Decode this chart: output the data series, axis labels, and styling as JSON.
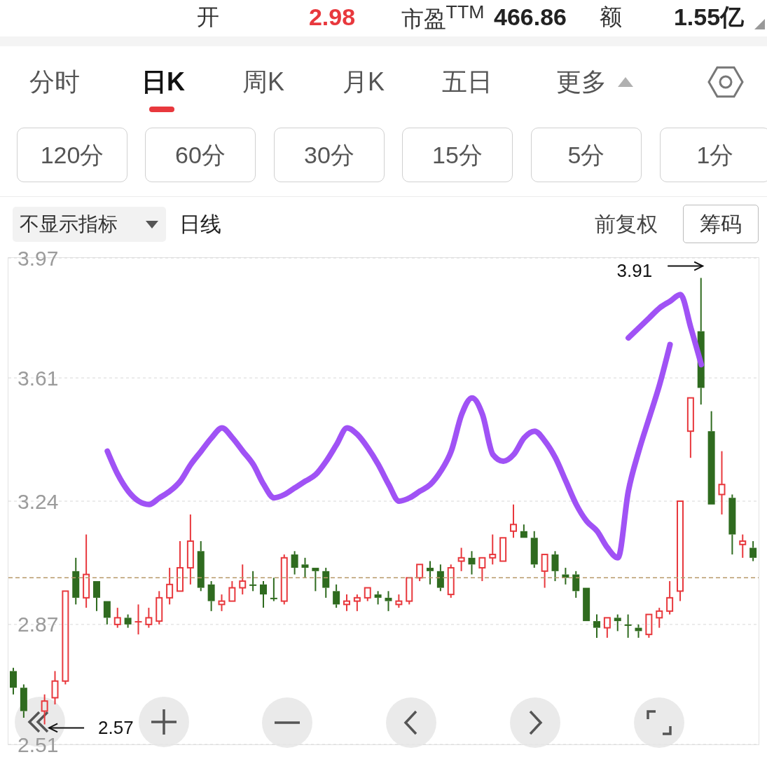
{
  "chart_data": {
    "type": "candlestick",
    "categories": [
      null,
      null,
      null,
      null,
      null,
      null,
      null,
      null,
      null,
      null,
      null,
      null,
      null,
      null,
      null,
      null,
      null,
      null,
      null,
      null,
      null,
      null,
      null,
      null,
      null,
      null,
      null,
      null,
      null,
      null,
      null,
      null,
      null,
      null,
      null,
      null,
      null,
      null,
      null,
      null,
      null,
      null,
      null,
      null,
      null,
      null,
      null,
      null,
      null,
      null,
      null,
      null,
      null,
      null,
      null,
      null,
      null,
      null,
      null,
      null,
      null,
      null,
      null,
      null,
      null,
      null,
      null,
      null,
      null,
      null,
      null,
      null
    ],
    "ohlc": [
      [
        2.73,
        2.74,
        2.66,
        2.68
      ],
      [
        2.68,
        2.69,
        2.59,
        2.61
      ],
      null,
      [
        2.61,
        2.66,
        2.57,
        2.64
      ],
      [
        2.65,
        2.73,
        2.63,
        2.7
      ],
      [
        2.7,
        2.97,
        2.69,
        2.97
      ],
      [
        3.03,
        3.07,
        2.93,
        2.95
      ],
      [
        2.95,
        3.14,
        2.92,
        3.02
      ],
      [
        3.0,
        3.0,
        2.91,
        2.95
      ],
      [
        2.94,
        2.94,
        2.87,
        2.89
      ],
      [
        2.87,
        2.92,
        2.86,
        2.89
      ],
      [
        2.89,
        2.9,
        2.86,
        2.87
      ],
      [
        2.88,
        2.93,
        2.84,
        2.88
      ],
      [
        2.87,
        2.92,
        2.86,
        2.89
      ],
      [
        2.88,
        2.97,
        2.87,
        2.95
      ],
      [
        2.95,
        3.04,
        2.93,
        2.99
      ],
      [
        2.97,
        3.12,
        2.97,
        3.04
      ],
      [
        3.04,
        3.2,
        2.99,
        3.12
      ],
      [
        3.09,
        3.12,
        2.97,
        2.98
      ],
      [
        2.99,
        3.0,
        2.91,
        2.94
      ],
      [
        2.93,
        2.96,
        2.91,
        2.94
      ],
      [
        2.94,
        3.0,
        2.94,
        2.98
      ],
      [
        2.98,
        3.05,
        2.96,
        3.0
      ],
      [
        2.99,
        3.03,
        2.97,
        2.99
      ],
      [
        2.99,
        3.0,
        2.92,
        2.96
      ],
      [
        2.95,
        3.01,
        2.94,
        2.95
      ],
      [
        2.94,
        3.08,
        2.93,
        3.07
      ],
      [
        3.08,
        3.09,
        3.02,
        3.04
      ],
      [
        3.05,
        3.07,
        3.01,
        3.04
      ],
      [
        3.04,
        3.04,
        2.97,
        3.03
      ],
      [
        3.03,
        3.04,
        2.95,
        2.98
      ],
      [
        2.97,
        2.99,
        2.92,
        2.93
      ],
      [
        2.93,
        2.96,
        2.91,
        2.94
      ],
      [
        2.94,
        2.96,
        2.91,
        2.95
      ],
      [
        2.95,
        2.98,
        2.94,
        2.98
      ],
      [
        2.96,
        2.97,
        2.93,
        2.95
      ],
      [
        2.95,
        2.97,
        2.91,
        2.94
      ],
      [
        2.93,
        2.96,
        2.92,
        2.94
      ],
      [
        2.94,
        3.01,
        2.93,
        3.01
      ],
      [
        3.01,
        3.05,
        3.0,
        3.05
      ],
      [
        3.04,
        3.06,
        2.99,
        3.03
      ],
      [
        3.03,
        3.05,
        2.97,
        2.98
      ],
      [
        2.96,
        3.05,
        2.95,
        3.04
      ],
      [
        3.06,
        3.1,
        3.03,
        3.07
      ],
      [
        3.07,
        3.09,
        3.02,
        3.05
      ],
      [
        3.04,
        3.07,
        3.0,
        3.07
      ],
      [
        3.07,
        3.14,
        3.05,
        3.08
      ],
      [
        3.06,
        3.13,
        3.06,
        3.13
      ],
      [
        3.15,
        3.23,
        3.13,
        3.17
      ],
      [
        3.15,
        3.17,
        3.13,
        3.13
      ],
      [
        3.13,
        3.15,
        3.04,
        3.05
      ],
      [
        3.03,
        3.08,
        2.98,
        3.08
      ],
      [
        3.08,
        3.09,
        3.0,
        3.03
      ],
      [
        3.02,
        3.04,
        2.99,
        3.01
      ],
      [
        3.02,
        3.03,
        2.95,
        2.97
      ],
      [
        2.98,
        2.98,
        2.88,
        2.88
      ],
      [
        2.88,
        2.9,
        2.83,
        2.86
      ],
      [
        2.86,
        2.89,
        2.83,
        2.89
      ],
      [
        2.89,
        2.9,
        2.85,
        2.88
      ],
      [
        2.87,
        2.9,
        2.83,
        2.87
      ],
      [
        2.86,
        2.87,
        2.83,
        2.85
      ],
      [
        2.84,
        2.9,
        2.83,
        2.9
      ],
      [
        2.89,
        2.92,
        2.86,
        2.91
      ],
      [
        2.91,
        3.0,
        2.9,
        2.95
      ],
      [
        2.97,
        3.24,
        2.94,
        3.24
      ],
      [
        3.45,
        3.55,
        3.37,
        3.55
      ],
      [
        3.75,
        3.91,
        3.53,
        3.58
      ],
      [
        3.45,
        3.51,
        3.23,
        3.23
      ],
      [
        3.26,
        3.39,
        3.2,
        3.29
      ],
      [
        3.25,
        3.26,
        3.08,
        3.14
      ],
      [
        3.11,
        3.14,
        3.07,
        3.12
      ],
      [
        3.1,
        3.12,
        3.06,
        3.07
      ]
    ],
    "colors": [
      "#2f6b1f",
      "#2f6b1f",
      null,
      "#e8383d",
      "#e8383d",
      "#e8383d",
      "#2f6b1f",
      "#e8383d",
      "#2f6b1f",
      "#2f6b1f",
      "#e8383d",
      "#2f6b1f",
      "#e8383d",
      "#e8383d",
      "#e8383d",
      "#e8383d",
      "#e8383d",
      "#e8383d",
      "#2f6b1f",
      "#2f6b1f",
      "#e8383d",
      "#e8383d",
      "#e8383d",
      "#2f6b1f",
      "#2f6b1f",
      "#2f6b1f",
      "#e8383d",
      "#2f6b1f",
      "#2f6b1f",
      "#2f6b1f",
      "#2f6b1f",
      "#2f6b1f",
      "#e8383d",
      "#e8383d",
      "#e8383d",
      "#2f6b1f",
      "#2f6b1f",
      "#e8383d",
      "#e8383d",
      "#e8383d",
      "#2f6b1f",
      "#2f6b1f",
      "#e8383d",
      "#e8383d",
      "#2f6b1f",
      "#e8383d",
      "#e8383d",
      "#e8383d",
      "#e8383d",
      "#2f6b1f",
      "#2f6b1f",
      "#e8383d",
      "#2f6b1f",
      "#2f6b1f",
      "#2f6b1f",
      "#2f6b1f",
      "#2f6b1f",
      "#e8383d",
      "#2f6b1f",
      "#2f6b1f",
      "#2f6b1f",
      "#e8383d",
      "#e8383d",
      "#e8383d",
      "#e8383d",
      "#e8383d",
      "#2f6b1f",
      "#2f6b1f",
      "#e8383d",
      "#2f6b1f",
      "#e8383d",
      "#2f6b1f"
    ],
    "series": [
      {
        "type": "line",
        "color": "#a052f5",
        "values": [
          null,
          null,
          null,
          null,
          null,
          null,
          null,
          null,
          null,
          3.39,
          3.32,
          3.27,
          3.24,
          3.23,
          3.25,
          3.27,
          3.3,
          3.35,
          3.39,
          3.43,
          3.46,
          3.43,
          3.39,
          3.35,
          3.29,
          3.25,
          3.26,
          3.28,
          3.3,
          3.32,
          3.36,
          3.41,
          3.46,
          3.44,
          3.4,
          3.35,
          3.29,
          3.24,
          3.25,
          3.27,
          3.29,
          3.33,
          3.39,
          3.5,
          3.55,
          3.5,
          3.38,
          3.36,
          3.38,
          3.43,
          3.45,
          3.42,
          3.37,
          3.3,
          3.23,
          3.18,
          3.15,
          3.1,
          3.07,
          3.27,
          3.39,
          3.49,
          3.59,
          3.71,
          null,
          null,
          null,
          null,
          null,
          null,
          null,
          null
        ]
      },
      {
        "type": "line",
        "color": "#a052f5",
        "values": [
          null,
          null,
          null,
          null,
          null,
          null,
          null,
          null,
          null,
          null,
          null,
          null,
          null,
          null,
          null,
          null,
          null,
          null,
          null,
          null,
          null,
          null,
          null,
          null,
          null,
          null,
          null,
          null,
          null,
          null,
          null,
          null,
          null,
          null,
          null,
          null,
          null,
          null,
          null,
          null,
          null,
          null,
          null,
          null,
          null,
          null,
          null,
          null,
          null,
          null,
          null,
          null,
          null,
          null,
          null,
          null,
          null,
          null,
          null,
          3.73,
          3.76,
          3.79,
          3.82,
          3.84,
          3.86,
          3.76,
          3.65,
          null,
          null,
          null,
          null,
          null
        ]
      }
    ],
    "ylim": [
      2.51,
      3.97
    ],
    "yticks": [
      2.51,
      2.87,
      3.24,
      3.61,
      3.97
    ],
    "grid": "y",
    "tick_labels": "y",
    "ref_lines": [
      {
        "axis": "y",
        "value": 3.01,
        "color": "#b89a6a",
        "line_style": "dashed"
      }
    ],
    "annotations": [
      "开",
      "2.98",
      "市盈$^{TTM}$",
      "466.86",
      "额",
      "1.55亿",
      "分时",
      "日K",
      "周K",
      "月K",
      "五日",
      "更多",
      "120分",
      "60分",
      "30分",
      "15分",
      "5分",
      "1分",
      "不显示指标",
      "日线",
      "前复权",
      "筹码",
      "3.91",
      "2.57"
    ]
  }
}
